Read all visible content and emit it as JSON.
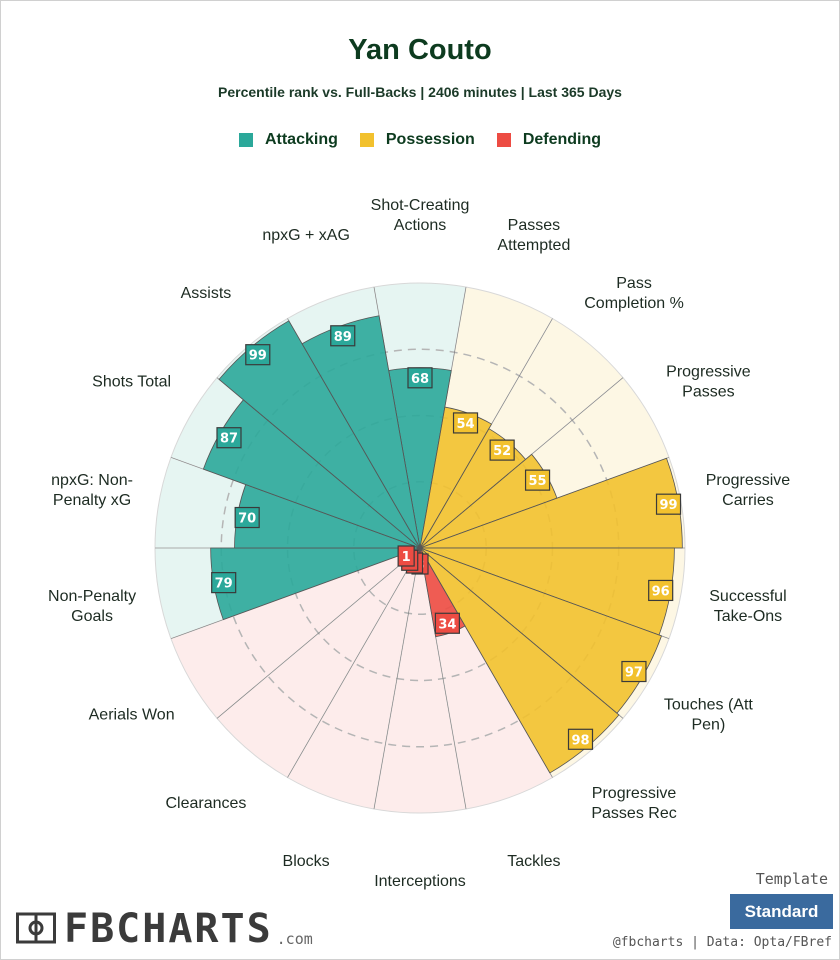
{
  "header": {
    "title": "Yan Couto",
    "subtitle": "Percentile rank vs. Full-Backs | 2406 minutes | Last 365 Days"
  },
  "legend": [
    {
      "label": "Attacking",
      "color": "#2ba89a"
    },
    {
      "label": "Possession",
      "color": "#f2c12e"
    },
    {
      "label": "Defending",
      "color": "#ed4c43"
    }
  ],
  "chart_data": {
    "type": "polar-bar",
    "rlim": [
      0,
      100
    ],
    "grid": true,
    "legend_position": "top",
    "categories": [
      {
        "label": "Shot-Creating\nActions",
        "value": 68,
        "group": "Attacking"
      },
      {
        "label": "Passes\nAttempted",
        "value": 54,
        "group": "Possession"
      },
      {
        "label": "Pass\nCompletion %",
        "value": 52,
        "group": "Possession"
      },
      {
        "label": "Progressive\nPasses",
        "value": 55,
        "group": "Possession"
      },
      {
        "label": "Progressive\nCarries",
        "value": 99,
        "group": "Possession"
      },
      {
        "label": "Successful\nTake-Ons",
        "value": 96,
        "group": "Possession"
      },
      {
        "label": "Touches (Att\nPen)",
        "value": 97,
        "group": "Possession"
      },
      {
        "label": "Progressive\nPasses Rec",
        "value": 98,
        "group": "Possession"
      },
      {
        "label": "Tackles",
        "value": 34,
        "group": "Defending"
      },
      {
        "label": "Interceptions",
        "value": 3,
        "group": "Defending"
      },
      {
        "label": "Blocks",
        "value": 2,
        "group": "Defending"
      },
      {
        "label": "Clearances",
        "value": 3,
        "group": "Defending"
      },
      {
        "label": "Aerials Won",
        "value": 1,
        "group": "Defending"
      },
      {
        "label": "Non-Penalty\nGoals",
        "value": 79,
        "group": "Attacking"
      },
      {
        "label": "npxG: Non-\nPenalty xG",
        "value": 70,
        "group": "Attacking"
      },
      {
        "label": "Shots Total",
        "value": 87,
        "group": "Attacking"
      },
      {
        "label": "Assists",
        "value": 99,
        "group": "Attacking"
      },
      {
        "label": "npxG + xAG",
        "value": 89,
        "group": "Attacking"
      }
    ]
  },
  "footer": {
    "template_label": "Template",
    "template_button": "Standard",
    "credits": "@fbcharts | Data: Opta/FBref",
    "logo_text": "FBCHARTS",
    "logo_suffix": ".com"
  }
}
